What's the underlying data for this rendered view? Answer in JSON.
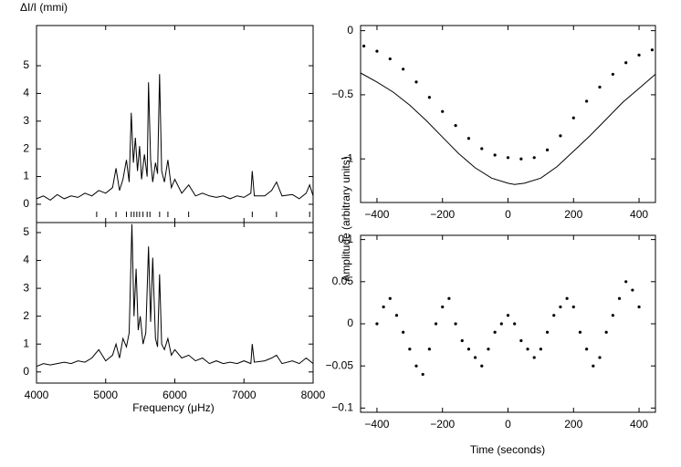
{
  "chart_data": [
    {
      "type": "line",
      "ylabel": "ΔI/I (mmi)",
      "xlim": [
        4000,
        8000
      ],
      "ylim": [
        -0.66,
        6.45
      ],
      "yticks": [
        0,
        1,
        2,
        3,
        4,
        5
      ],
      "color": "#000000",
      "x": [
        4000,
        4100,
        4200,
        4300,
        4400,
        4500,
        4600,
        4700,
        4800,
        4900,
        5000,
        5100,
        5150,
        5200,
        5250,
        5300,
        5340,
        5370,
        5400,
        5430,
        5460,
        5490,
        5520,
        5560,
        5600,
        5620,
        5650,
        5680,
        5720,
        5750,
        5780,
        5810,
        5850,
        5900,
        5950,
        6000,
        6100,
        6200,
        6300,
        6400,
        6500,
        6600,
        6700,
        6800,
        6900,
        7000,
        7100,
        7120,
        7150,
        7300,
        7400,
        7470,
        7550,
        7700,
        7800,
        7900,
        7950,
        8000
      ],
      "values": [
        0.2,
        0.3,
        0.15,
        0.35,
        0.2,
        0.3,
        0.25,
        0.4,
        0.3,
        0.5,
        0.4,
        0.6,
        1.3,
        0.5,
        0.9,
        1.6,
        0.8,
        3.3,
        1.5,
        2.4,
        1.2,
        2.1,
        0.9,
        1.8,
        1.0,
        4.4,
        1.6,
        0.8,
        1.5,
        1.1,
        4.7,
        1.2,
        0.8,
        1.6,
        0.6,
        0.9,
        0.4,
        0.7,
        0.3,
        0.4,
        0.3,
        0.25,
        0.3,
        0.2,
        0.3,
        0.25,
        0.4,
        1.2,
        0.3,
        0.3,
        0.5,
        0.8,
        0.3,
        0.35,
        0.2,
        0.4,
        0.7,
        0.3
      ],
      "markers": [
        4870,
        5150,
        5300,
        5370,
        5410,
        5450,
        5490,
        5540,
        5600,
        5640,
        5780,
        5900,
        6200,
        7120,
        7470,
        7950,
        8000
      ]
    },
    {
      "type": "line",
      "xlabel": "Frequency (μHz)",
      "xlim": [
        4000,
        8000
      ],
      "ylim": [
        -0.4,
        5.36
      ],
      "xticks": [
        4000,
        5000,
        6000,
        7000,
        8000
      ],
      "yticks": [
        0,
        1,
        2,
        3,
        4,
        5
      ],
      "color": "#000000",
      "x": [
        4000,
        4100,
        4200,
        4300,
        4400,
        4500,
        4600,
        4700,
        4800,
        4900,
        5000,
        5100,
        5150,
        5200,
        5250,
        5300,
        5340,
        5380,
        5410,
        5440,
        5470,
        5500,
        5540,
        5580,
        5620,
        5650,
        5680,
        5720,
        5750,
        5780,
        5810,
        5850,
        5900,
        5950,
        6000,
        6100,
        6200,
        6300,
        6400,
        6500,
        6600,
        6700,
        6800,
        6900,
        7000,
        7100,
        7120,
        7150,
        7300,
        7400,
        7470,
        7550,
        7700,
        7800,
        7900,
        8000
      ],
      "values": [
        0.2,
        0.3,
        0.25,
        0.3,
        0.35,
        0.3,
        0.4,
        0.35,
        0.5,
        0.8,
        0.4,
        0.6,
        1.0,
        0.5,
        1.2,
        0.9,
        1.4,
        5.3,
        2.0,
        3.7,
        1.5,
        2.0,
        1.0,
        1.4,
        4.5,
        1.8,
        4.1,
        1.2,
        0.9,
        3.5,
        1.0,
        0.8,
        1.2,
        0.6,
        0.8,
        0.5,
        0.6,
        0.4,
        0.5,
        0.3,
        0.4,
        0.3,
        0.35,
        0.3,
        0.4,
        0.3,
        1.0,
        0.35,
        0.4,
        0.5,
        0.6,
        0.3,
        0.4,
        0.3,
        0.5,
        0.3
      ]
    },
    {
      "type": "scatter",
      "ylabel": "Amplitude (arbitrary units)",
      "xlim": [
        -450,
        450
      ],
      "ylim": [
        -1.34,
        0.04
      ],
      "xticks": [
        {
          "value": -400,
          "label": "−400"
        },
        {
          "value": -200,
          "label": "−200"
        },
        0,
        200,
        400
      ],
      "yticks": [
        0,
        {
          "value": -0.5,
          "label": "−0.5"
        },
        {
          "value": -1,
          "label": "−1"
        }
      ],
      "series": [
        {
          "style": "points",
          "color": "#000000",
          "x": [
            -440,
            -400,
            -360,
            -320,
            -280,
            -240,
            -200,
            -160,
            -120,
            -80,
            -40,
            0,
            40,
            80,
            120,
            160,
            200,
            240,
            280,
            320,
            360,
            400,
            440
          ],
          "values": [
            -0.12,
            -0.16,
            -0.22,
            -0.3,
            -0.4,
            -0.52,
            -0.63,
            -0.74,
            -0.84,
            -0.92,
            -0.97,
            -0.99,
            -1.0,
            -0.99,
            -0.93,
            -0.82,
            -0.68,
            -0.55,
            -0.44,
            -0.34,
            -0.25,
            -0.19,
            -0.15
          ]
        },
        {
          "style": "line",
          "color": "#000000",
          "x": [
            -450,
            -400,
            -350,
            -300,
            -250,
            -200,
            -150,
            -100,
            -50,
            0,
            20,
            50,
            100,
            150,
            200,
            250,
            300,
            350,
            400,
            450
          ],
          "values": [
            -0.33,
            -0.4,
            -0.48,
            -0.58,
            -0.7,
            -0.83,
            -0.96,
            -1.07,
            -1.15,
            -1.19,
            -1.2,
            -1.19,
            -1.15,
            -1.06,
            -0.94,
            -0.82,
            -0.69,
            -0.56,
            -0.45,
            -0.34
          ]
        }
      ]
    },
    {
      "type": "scatter",
      "xlabel": "Time (seconds)",
      "xlim": [
        -450,
        450
      ],
      "ylim": [
        -0.105,
        0.105
      ],
      "xticks": [
        {
          "value": -400,
          "label": "−400"
        },
        {
          "value": -200,
          "label": "−200"
        },
        0,
        200,
        400
      ],
      "yticks": [
        0.1,
        0.05,
        0,
        {
          "value": -0.05,
          "label": "−0.05"
        },
        {
          "value": -0.1,
          "label": "−0.1"
        }
      ],
      "series": [
        {
          "style": "points",
          "color": "#000000",
          "x": [
            -400,
            -380,
            -360,
            -340,
            -320,
            -300,
            -280,
            -260,
            -240,
            -220,
            -200,
            -180,
            -160,
            -140,
            -120,
            -100,
            -80,
            -60,
            -40,
            -20,
            0,
            20,
            40,
            60,
            80,
            100,
            120,
            140,
            160,
            180,
            200,
            220,
            240,
            260,
            280,
            300,
            320,
            340,
            360,
            380,
            400
          ],
          "values": [
            0.0,
            0.02,
            0.03,
            0.01,
            -0.01,
            -0.03,
            -0.05,
            -0.06,
            -0.03,
            0.0,
            0.02,
            0.03,
            0.0,
            -0.02,
            -0.03,
            -0.04,
            -0.05,
            -0.03,
            -0.01,
            0.0,
            0.01,
            0.0,
            -0.02,
            -0.03,
            -0.04,
            -0.03,
            -0.01,
            0.01,
            0.02,
            0.03,
            0.02,
            -0.01,
            -0.03,
            -0.05,
            -0.04,
            -0.01,
            0.01,
            0.03,
            0.05,
            0.04,
            0.02
          ]
        }
      ]
    }
  ]
}
